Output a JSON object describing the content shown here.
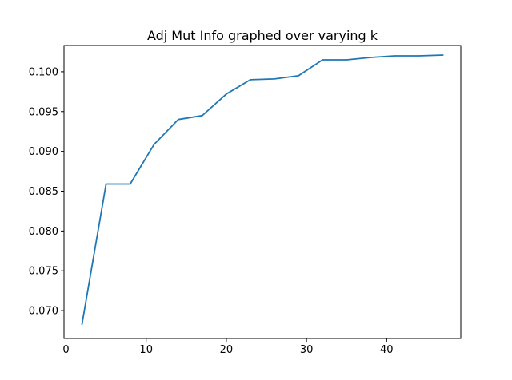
{
  "chart_data": {
    "type": "line",
    "title": "Adj Mut Info graphed over varying k",
    "xlabel": "",
    "ylabel": "",
    "xlim": [
      -0.25,
      49.25
    ],
    "ylim": [
      0.0665,
      0.1033
    ],
    "x_ticks": [
      0,
      10,
      20,
      30,
      40
    ],
    "x_tick_labels": [
      "0",
      "10",
      "20",
      "30",
      "40"
    ],
    "y_ticks": [
      0.07,
      0.075,
      0.08,
      0.085,
      0.09,
      0.095,
      0.1
    ],
    "y_tick_labels": [
      "0.070",
      "0.075",
      "0.080",
      "0.085",
      "0.090",
      "0.095",
      "0.100"
    ],
    "grid": false,
    "series": [
      {
        "name": "Adj Mut Info",
        "color": "#1f77b4",
        "x": [
          2,
          5,
          8,
          11,
          14,
          17,
          20,
          23,
          26,
          29,
          32,
          35,
          38,
          41,
          44,
          47
        ],
        "y": [
          0.0683,
          0.0859,
          0.0859,
          0.0909,
          0.094,
          0.0945,
          0.0972,
          0.099,
          0.0991,
          0.0995,
          0.1015,
          0.1015,
          0.1018,
          0.102,
          0.102,
          0.1021
        ]
      }
    ]
  }
}
